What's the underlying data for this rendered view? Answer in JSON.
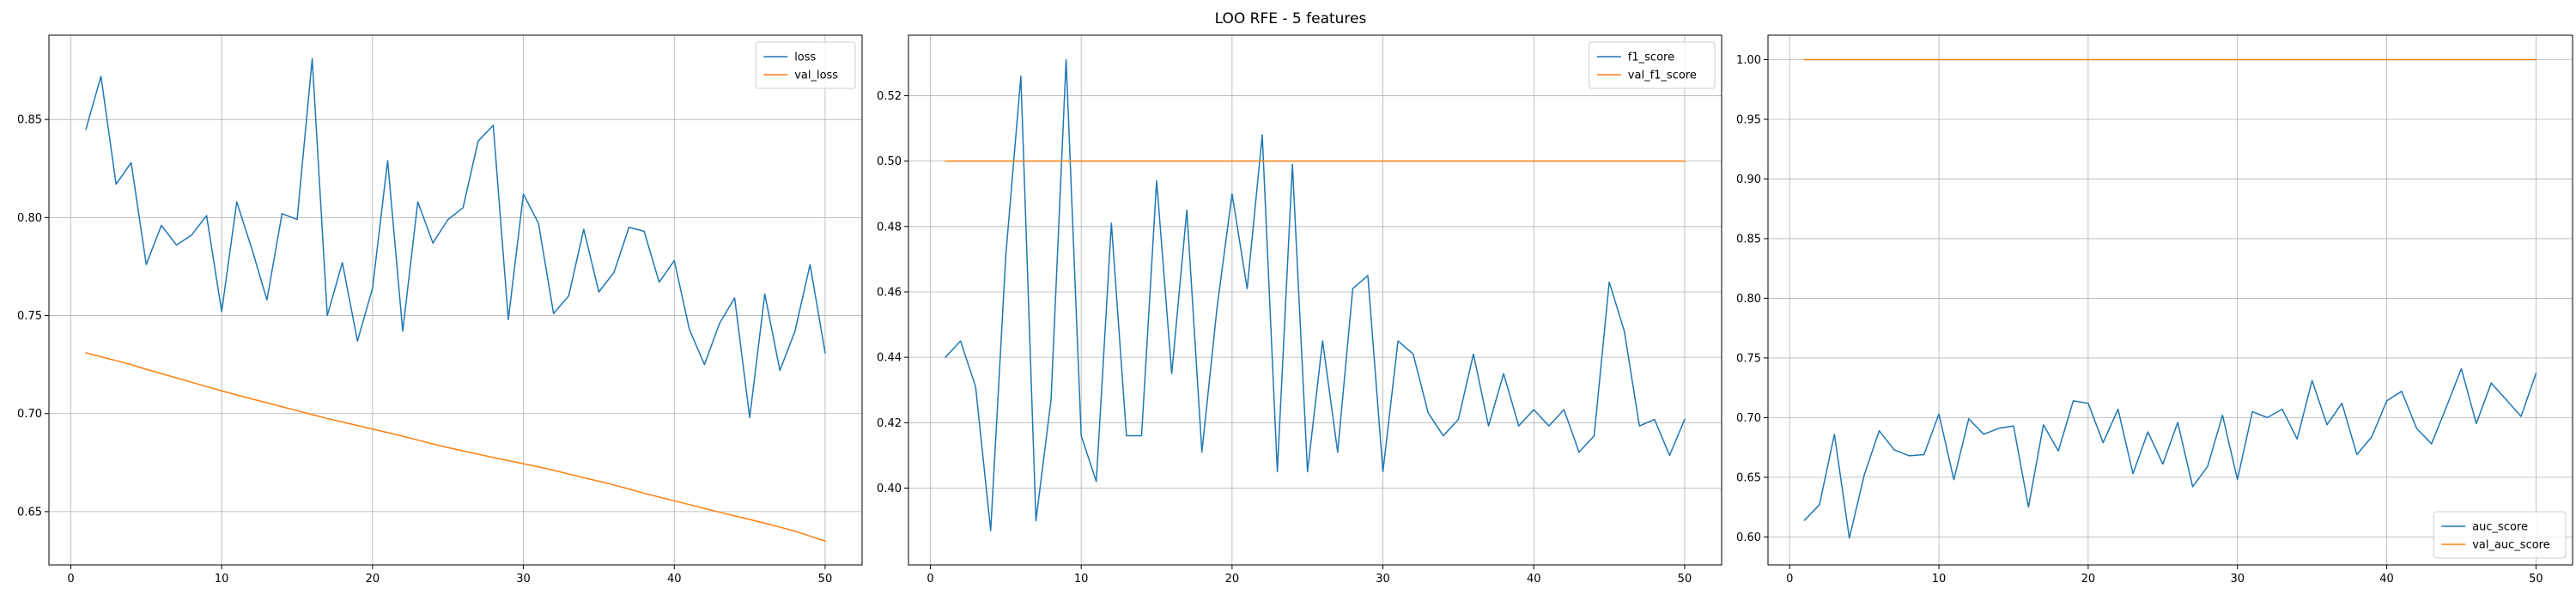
{
  "figure_title": "LOO RFE - 5 features",
  "colors": {
    "series1": "#1f77b4",
    "series2": "#ff7f0e"
  },
  "chart_data": [
    {
      "type": "line",
      "title": "",
      "xlabel": "",
      "ylabel": "",
      "xlim": [
        -1.45,
        52.45
      ],
      "ylim": [
        0.6228,
        0.893
      ],
      "xticks": [
        0,
        10,
        20,
        30,
        40,
        50
      ],
      "yticks": [
        0.65,
        0.7,
        0.75,
        0.8,
        0.85
      ],
      "ytick_labels": [
        "0.65",
        "0.70",
        "0.75",
        "0.80",
        "0.85"
      ],
      "grid": true,
      "legend_position": "upper right",
      "x": [
        1,
        2,
        3,
        4,
        5,
        6,
        7,
        8,
        9,
        10,
        11,
        12,
        13,
        14,
        15,
        16,
        17,
        18,
        19,
        20,
        21,
        22,
        23,
        24,
        25,
        26,
        27,
        28,
        29,
        30,
        31,
        32,
        33,
        34,
        35,
        36,
        37,
        38,
        39,
        40,
        41,
        42,
        43,
        44,
        45,
        46,
        47,
        48,
        49,
        50
      ],
      "series": [
        {
          "name": "loss",
          "values": [
            0.845,
            0.872,
            0.817,
            0.828,
            0.776,
            0.796,
            0.786,
            0.791,
            0.801,
            0.752,
            0.808,
            0.784,
            0.758,
            0.802,
            0.799,
            0.881,
            0.75,
            0.777,
            0.737,
            0.764,
            0.829,
            0.742,
            0.808,
            0.787,
            0.799,
            0.805,
            0.839,
            0.847,
            0.748,
            0.812,
            0.797,
            0.751,
            0.76,
            0.794,
            0.762,
            0.772,
            0.795,
            0.793,
            0.767,
            0.778,
            0.743,
            0.725,
            0.746,
            0.759,
            0.698,
            0.761,
            0.722,
            0.742,
            0.776,
            0.731
          ]
        },
        {
          "name": "val_loss",
          "values": [
            0.731,
            0.729,
            0.727,
            0.725,
            0.7226,
            0.7204,
            0.7182,
            0.716,
            0.7138,
            0.7116,
            0.7095,
            0.7075,
            0.7055,
            0.7035,
            0.7015,
            0.6995,
            0.6975,
            0.6957,
            0.6939,
            0.6921,
            0.6903,
            0.6885,
            0.6865,
            0.6845,
            0.6827,
            0.681,
            0.6793,
            0.6776,
            0.676,
            0.6744,
            0.6728,
            0.6711,
            0.6692,
            0.6673,
            0.6655,
            0.6636,
            0.6615,
            0.6594,
            0.6574,
            0.6555,
            0.6536,
            0.6516,
            0.6497,
            0.6478,
            0.646,
            0.6441,
            0.6421,
            0.64,
            0.6375,
            0.635
          ]
        }
      ]
    },
    {
      "type": "line",
      "title": "",
      "xlabel": "",
      "ylabel": "",
      "xlim": [
        -1.45,
        52.45
      ],
      "ylim": [
        0.3765,
        0.5385
      ],
      "xticks": [
        0,
        10,
        20,
        30,
        40,
        50
      ],
      "yticks": [
        0.4,
        0.42,
        0.44,
        0.46,
        0.48,
        0.5,
        0.52
      ],
      "ytick_labels": [
        "0.40",
        "0.42",
        "0.44",
        "0.46",
        "0.48",
        "0.50",
        "0.52"
      ],
      "grid": true,
      "legend_position": "upper right",
      "x": [
        1,
        2,
        3,
        4,
        5,
        6,
        7,
        8,
        9,
        10,
        11,
        12,
        13,
        14,
        15,
        16,
        17,
        18,
        19,
        20,
        21,
        22,
        23,
        24,
        25,
        26,
        27,
        28,
        29,
        30,
        31,
        32,
        33,
        34,
        35,
        36,
        37,
        38,
        39,
        40,
        41,
        42,
        43,
        44,
        45,
        46,
        47,
        48,
        49,
        50
      ],
      "series": [
        {
          "name": "f1_score",
          "values": [
            0.44,
            0.445,
            0.431,
            0.387,
            0.471,
            0.526,
            0.39,
            0.427,
            0.531,
            0.416,
            0.402,
            0.481,
            0.416,
            0.416,
            0.494,
            0.435,
            0.485,
            0.411,
            0.455,
            0.49,
            0.461,
            0.508,
            0.405,
            0.499,
            0.405,
            0.445,
            0.411,
            0.461,
            0.465,
            0.405,
            0.445,
            0.441,
            0.423,
            0.416,
            0.421,
            0.441,
            0.419,
            0.435,
            0.419,
            0.424,
            0.419,
            0.424,
            0.411,
            0.416,
            0.463,
            0.448,
            0.419,
            0.421,
            0.41,
            0.421
          ]
        },
        {
          "name": "val_f1_score",
          "values": [
            0.5,
            0.5,
            0.5,
            0.5,
            0.5,
            0.5,
            0.5,
            0.5,
            0.5,
            0.5,
            0.5,
            0.5,
            0.5,
            0.5,
            0.5,
            0.5,
            0.5,
            0.5,
            0.5,
            0.5,
            0.5,
            0.5,
            0.5,
            0.5,
            0.5,
            0.5,
            0.5,
            0.5,
            0.5,
            0.5,
            0.5,
            0.5,
            0.5,
            0.5,
            0.5,
            0.5,
            0.5,
            0.5,
            0.5,
            0.5,
            0.5,
            0.5,
            0.5,
            0.5,
            0.5,
            0.5,
            0.5,
            0.5,
            0.5,
            0.5
          ]
        }
      ]
    },
    {
      "type": "line",
      "title": "",
      "xlabel": "",
      "ylabel": "",
      "xlim": [
        -1.45,
        52.45
      ],
      "ylim": [
        0.5765,
        1.0205
      ],
      "xticks": [
        0,
        10,
        20,
        30,
        40,
        50
      ],
      "yticks": [
        0.6,
        0.65,
        0.7,
        0.75,
        0.8,
        0.85,
        0.9,
        0.95,
        1.0
      ],
      "ytick_labels": [
        "0.60",
        "0.65",
        "0.70",
        "0.75",
        "0.80",
        "0.85",
        "0.90",
        "0.95",
        "1.00"
      ],
      "grid": true,
      "legend_position": "lower right",
      "x": [
        1,
        2,
        3,
        4,
        5,
        6,
        7,
        8,
        9,
        10,
        11,
        12,
        13,
        14,
        15,
        16,
        17,
        18,
        19,
        20,
        21,
        22,
        23,
        24,
        25,
        26,
        27,
        28,
        29,
        30,
        31,
        32,
        33,
        34,
        35,
        36,
        37,
        38,
        39,
        40,
        41,
        42,
        43,
        44,
        45,
        46,
        47,
        48,
        49,
        50
      ],
      "series": [
        {
          "name": "auc_score",
          "values": [
            0.614,
            0.627,
            0.686,
            0.599,
            0.652,
            0.689,
            0.673,
            0.668,
            0.669,
            0.703,
            0.648,
            0.699,
            0.686,
            0.691,
            0.693,
            0.625,
            0.694,
            0.672,
            0.714,
            0.712,
            0.679,
            0.707,
            0.653,
            0.688,
            0.661,
            0.696,
            0.642,
            0.659,
            0.702,
            0.648,
            0.705,
            0.7,
            0.707,
            0.682,
            0.731,
            0.694,
            0.712,
            0.669,
            0.684,
            0.714,
            0.722,
            0.691,
            0.678,
            0.709,
            0.741,
            0.695,
            0.729,
            0.715,
            0.701,
            0.737
          ]
        },
        {
          "name": "val_auc_score",
          "values": [
            1.0,
            1.0,
            1.0,
            1.0,
            1.0,
            1.0,
            1.0,
            1.0,
            1.0,
            1.0,
            1.0,
            1.0,
            1.0,
            1.0,
            1.0,
            1.0,
            1.0,
            1.0,
            1.0,
            1.0,
            1.0,
            1.0,
            1.0,
            1.0,
            1.0,
            1.0,
            1.0,
            1.0,
            1.0,
            1.0,
            1.0,
            1.0,
            1.0,
            1.0,
            1.0,
            1.0,
            1.0,
            1.0,
            1.0,
            1.0,
            1.0,
            1.0,
            1.0,
            1.0,
            1.0,
            1.0,
            1.0,
            1.0,
            1.0,
            1.0
          ]
        }
      ]
    }
  ]
}
